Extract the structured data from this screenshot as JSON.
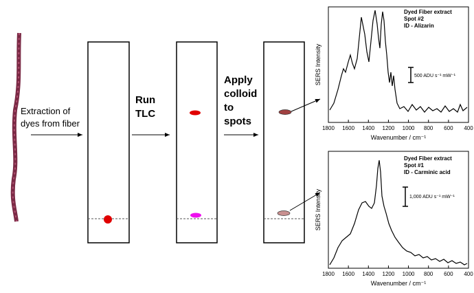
{
  "steps": {
    "extract": [
      "Extraction of",
      "dyes from fiber"
    ],
    "run": [
      "Run",
      "TLC"
    ],
    "apply": [
      "Apply",
      "colloid",
      "to",
      "spots"
    ]
  },
  "spectra": [
    {
      "annotation": [
        "Dyed Fiber extract",
        "Spot #2",
        "ID - Alizarin"
      ],
      "scale_bar": "500 ADU s⁻¹ mW⁻¹",
      "y_label": "SERS Intensity",
      "x_label": "Wavenumber / cm⁻¹",
      "x_ticks": [
        "1800",
        "1600",
        "1400",
        "1200",
        "1000",
        "800",
        "600",
        "400"
      ]
    },
    {
      "annotation": [
        "Dyed Fiber extract",
        "Spot #1",
        "ID - Carminic acid"
      ],
      "scale_bar": "1,000 ADU s⁻¹ mW⁻¹",
      "y_label": "SERS Intensity",
      "x_label": "Wavenumber / cm⁻¹",
      "x_ticks": [
        "1800",
        "1600",
        "1400",
        "1200",
        "1000",
        "800",
        "600",
        "400"
      ]
    }
  ]
}
